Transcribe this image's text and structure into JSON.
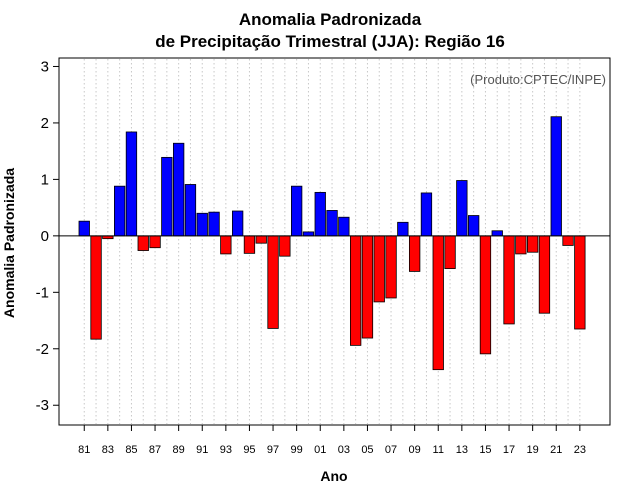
{
  "chart_data": {
    "type": "bar",
    "title": [
      "Anomalia Padronizada",
      "de Precipitação Trimestral (JJA): Região 16"
    ],
    "xlabel": "Ano",
    "ylabel": "Anomalia Padronizada",
    "credit": "(Produto:CPTEC/INPE)",
    "ylim": [
      -3.35,
      3.15
    ],
    "yticks": [
      -3,
      -2,
      -1,
      0,
      1,
      2,
      3
    ],
    "ytick_labels": [
      "-3",
      "-2",
      "-1",
      "0",
      "1",
      "2",
      "3"
    ],
    "years": [
      1981,
      1982,
      1983,
      1984,
      1985,
      1986,
      1987,
      1988,
      1989,
      1990,
      1991,
      1992,
      1993,
      1994,
      1995,
      1996,
      1997,
      1998,
      1999,
      2000,
      2001,
      2002,
      2003,
      2004,
      2005,
      2006,
      2007,
      2008,
      2009,
      2010,
      2011,
      2012,
      2013,
      2014,
      2015,
      2016,
      2017,
      2018,
      2019,
      2020,
      2021,
      2022,
      2023
    ],
    "x_tick_labels": [
      "81",
      "83",
      "85",
      "87",
      "89",
      "91",
      "93",
      "95",
      "97",
      "99",
      "01",
      "03",
      "05",
      "07",
      "09",
      "11",
      "13",
      "15",
      "17",
      "19",
      "21",
      "23"
    ],
    "values": [
      0.26,
      -1.83,
      -0.05,
      0.88,
      1.84,
      -0.26,
      -0.21,
      1.39,
      1.64,
      0.91,
      0.4,
      0.42,
      -0.32,
      0.44,
      -0.31,
      -0.13,
      -1.64,
      -0.36,
      0.88,
      0.07,
      0.77,
      0.45,
      0.33,
      -1.94,
      -1.81,
      -1.17,
      -1.1,
      0.24,
      -0.63,
      0.76,
      -2.37,
      -0.58,
      0.98,
      0.36,
      -2.09,
      0.09,
      -1.56,
      -0.32,
      -0.29,
      -1.37,
      2.11,
      -0.17,
      -1.65
    ],
    "grid": "vertical dotted",
    "colors": {
      "positive": "#0000ff",
      "negative": "#ff0000",
      "edge": "#000000",
      "grid": "#c8c8c8"
    }
  }
}
